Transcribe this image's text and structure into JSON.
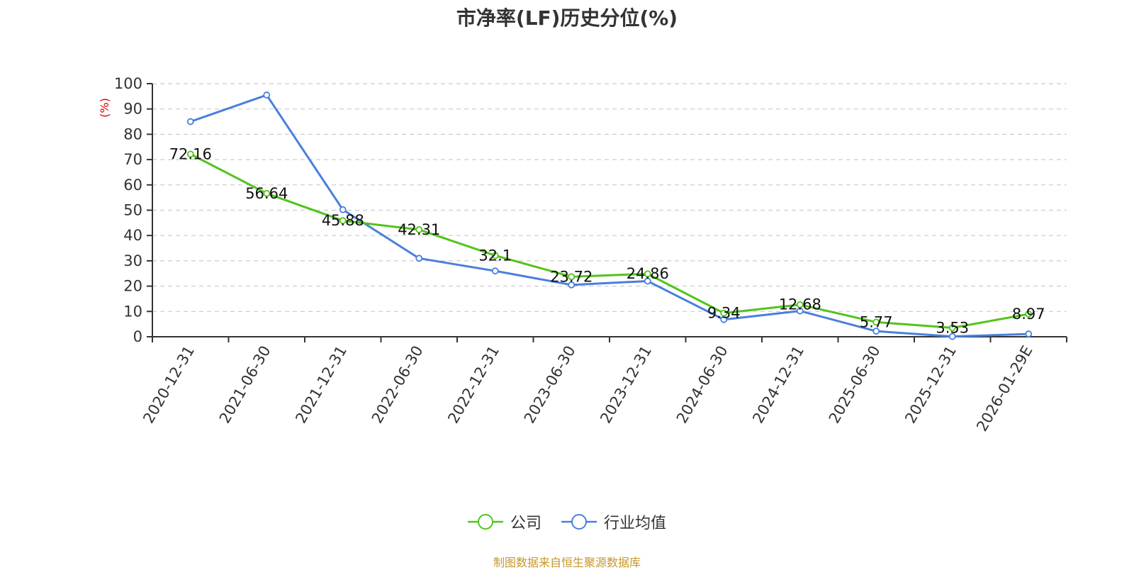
{
  "title": "市净率(LF)历史分位(%)",
  "source": "制图数据来自恒生聚源数据库",
  "chart_data": {
    "type": "line",
    "title": "市净率(LF)历史分位(%)",
    "ylabel": "(%)",
    "xlabel": "",
    "ylim": [
      0,
      100
    ],
    "yticks": [
      0,
      10,
      20,
      30,
      40,
      50,
      60,
      70,
      80,
      90,
      100
    ],
    "grid": true,
    "legend_position": "bottom",
    "categories": [
      "2020-12-31",
      "2021-06-30",
      "2021-12-31",
      "2022-06-30",
      "2022-12-31",
      "2023-06-30",
      "2023-12-31",
      "2024-06-30",
      "2024-12-31",
      "2025-06-30",
      "2025-12-31",
      "2026-01-29E"
    ],
    "series": [
      {
        "name": "公司",
        "color": "#52c41a",
        "labeled": true,
        "values": [
          72.16,
          56.64,
          45.88,
          42.31,
          32.1,
          23.72,
          24.86,
          9.34,
          12.68,
          5.77,
          3.53,
          8.97
        ]
      },
      {
        "name": "行业均值",
        "color": "#4a7fdc",
        "labeled": false,
        "values": [
          85,
          95.5,
          50.2,
          31,
          26,
          20.5,
          22,
          6.8,
          10.2,
          2.2,
          0.1,
          1.1
        ]
      }
    ]
  }
}
